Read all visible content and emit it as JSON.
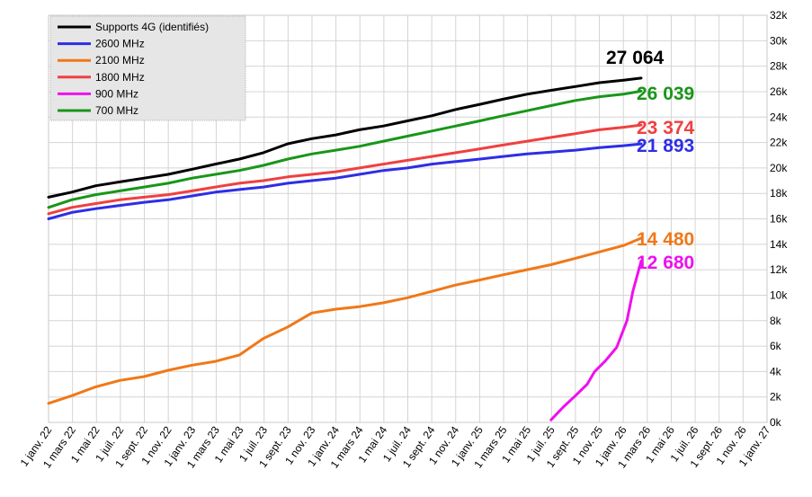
{
  "chart_data": {
    "type": "line",
    "title": "",
    "xlabel": "",
    "ylabel": "",
    "grid": true,
    "legend_position": "top-left",
    "ylim": [
      0,
      32000
    ],
    "y_ticks": [
      "0k",
      "2k",
      "4k",
      "6k",
      "8k",
      "10k",
      "12k",
      "14k",
      "16k",
      "18k",
      "20k",
      "22k",
      "24k",
      "26k",
      "28k",
      "30k",
      "32k"
    ],
    "x_ticks": [
      "1 janv. 22",
      "1 mars 22",
      "1 mai 22",
      "1 juil. 22",
      "1 sept. 22",
      "1 nov. 22",
      "1 janv. 23",
      "1 mars 23",
      "1 mai 23",
      "1 juil. 23",
      "1 sept. 23",
      "1 nov. 23",
      "1 janv. 24",
      "1 mars 24",
      "1 mai 24",
      "1 juil. 24",
      "1 sept. 24",
      "1 nov. 24",
      "1 janv. 25",
      "1 mars 25",
      "1 mai 25",
      "1 juil. 25",
      "1 sept. 25",
      "1 nov. 25",
      "1 janv. 26",
      "1 mars 26",
      "1 mai 26",
      "1 juil. 26",
      "1 sept. 26",
      "1 nov. 26",
      "1 janv. 27"
    ],
    "series": [
      {
        "name": "Supports 4G (identifiés)",
        "color": "#000000",
        "end_label": "27 064",
        "points": [
          [
            "2022-01-01",
            17700
          ],
          [
            "2022-03-01",
            18100
          ],
          [
            "2022-05-01",
            18600
          ],
          [
            "2022-07-01",
            18900
          ],
          [
            "2022-09-01",
            19200
          ],
          [
            "2022-11-01",
            19500
          ],
          [
            "2023-01-01",
            19900
          ],
          [
            "2023-03-01",
            20300
          ],
          [
            "2023-05-01",
            20700
          ],
          [
            "2023-07-01",
            21200
          ],
          [
            "2023-09-01",
            21900
          ],
          [
            "2023-11-01",
            22300
          ],
          [
            "2024-01-01",
            22600
          ],
          [
            "2024-03-01",
            23000
          ],
          [
            "2024-05-01",
            23300
          ],
          [
            "2024-07-01",
            23700
          ],
          [
            "2024-09-01",
            24100
          ],
          [
            "2024-11-01",
            24600
          ],
          [
            "2025-01-01",
            25000
          ],
          [
            "2025-03-01",
            25400
          ],
          [
            "2025-05-01",
            25800
          ],
          [
            "2025-07-01",
            26100
          ],
          [
            "2025-09-01",
            26400
          ],
          [
            "2025-11-01",
            26700
          ],
          [
            "2026-01-01",
            26900
          ],
          [
            "2026-02-15",
            27064
          ]
        ]
      },
      {
        "name": "2600 MHz",
        "color": "#2e2ee6",
        "end_label": "21 893",
        "points": [
          [
            "2022-01-01",
            16000
          ],
          [
            "2022-03-01",
            16500
          ],
          [
            "2022-05-01",
            16800
          ],
          [
            "2022-07-01",
            17050
          ],
          [
            "2022-09-01",
            17300
          ],
          [
            "2022-11-01",
            17500
          ],
          [
            "2023-01-01",
            17800
          ],
          [
            "2023-03-01",
            18100
          ],
          [
            "2023-05-01",
            18300
          ],
          [
            "2023-07-01",
            18500
          ],
          [
            "2023-09-01",
            18800
          ],
          [
            "2023-11-01",
            19000
          ],
          [
            "2024-01-01",
            19200
          ],
          [
            "2024-03-01",
            19500
          ],
          [
            "2024-05-01",
            19800
          ],
          [
            "2024-07-01",
            20000
          ],
          [
            "2024-09-01",
            20300
          ],
          [
            "2024-11-01",
            20500
          ],
          [
            "2025-01-01",
            20700
          ],
          [
            "2025-03-01",
            20900
          ],
          [
            "2025-05-01",
            21100
          ],
          [
            "2025-07-01",
            21250
          ],
          [
            "2025-09-01",
            21400
          ],
          [
            "2025-11-01",
            21600
          ],
          [
            "2026-01-01",
            21750
          ],
          [
            "2026-02-15",
            21893
          ]
        ]
      },
      {
        "name": "2100 MHz",
        "color": "#f07818",
        "end_label": "14 480",
        "points": [
          [
            "2022-01-01",
            1500
          ],
          [
            "2022-03-01",
            2100
          ],
          [
            "2022-05-01",
            2800
          ],
          [
            "2022-07-01",
            3300
          ],
          [
            "2022-09-01",
            3600
          ],
          [
            "2022-11-01",
            4100
          ],
          [
            "2023-01-01",
            4500
          ],
          [
            "2023-03-01",
            4800
          ],
          [
            "2023-05-01",
            5300
          ],
          [
            "2023-07-01",
            6600
          ],
          [
            "2023-09-01",
            7500
          ],
          [
            "2023-11-01",
            8600
          ],
          [
            "2024-01-01",
            8900
          ],
          [
            "2024-03-01",
            9100
          ],
          [
            "2024-05-01",
            9400
          ],
          [
            "2024-07-01",
            9800
          ],
          [
            "2024-09-01",
            10300
          ],
          [
            "2024-11-01",
            10800
          ],
          [
            "2025-01-01",
            11200
          ],
          [
            "2025-03-01",
            11600
          ],
          [
            "2025-05-01",
            12000
          ],
          [
            "2025-07-01",
            12400
          ],
          [
            "2025-09-01",
            12900
          ],
          [
            "2025-11-01",
            13400
          ],
          [
            "2026-01-01",
            13900
          ],
          [
            "2026-02-15",
            14480
          ]
        ]
      },
      {
        "name": "1800 MHz",
        "color": "#f04040",
        "end_label": "23 374",
        "points": [
          [
            "2022-01-01",
            16400
          ],
          [
            "2022-03-01",
            16900
          ],
          [
            "2022-05-01",
            17200
          ],
          [
            "2022-07-01",
            17500
          ],
          [
            "2022-09-01",
            17700
          ],
          [
            "2022-11-01",
            17900
          ],
          [
            "2023-01-01",
            18200
          ],
          [
            "2023-03-01",
            18500
          ],
          [
            "2023-05-01",
            18800
          ],
          [
            "2023-07-01",
            19000
          ],
          [
            "2023-09-01",
            19300
          ],
          [
            "2023-11-01",
            19500
          ],
          [
            "2024-01-01",
            19700
          ],
          [
            "2024-03-01",
            20000
          ],
          [
            "2024-05-01",
            20300
          ],
          [
            "2024-07-01",
            20600
          ],
          [
            "2024-09-01",
            20900
          ],
          [
            "2024-11-01",
            21200
          ],
          [
            "2025-01-01",
            21500
          ],
          [
            "2025-03-01",
            21800
          ],
          [
            "2025-05-01",
            22100
          ],
          [
            "2025-07-01",
            22400
          ],
          [
            "2025-09-01",
            22700
          ],
          [
            "2025-11-01",
            23000
          ],
          [
            "2026-01-01",
            23200
          ],
          [
            "2026-02-15",
            23374
          ]
        ]
      },
      {
        "name": "900 MHz",
        "color": "#ee10ee",
        "end_label": "12 680",
        "points": [
          [
            "2025-07-01",
            200
          ],
          [
            "2025-08-01",
            1200
          ],
          [
            "2025-09-01",
            2100
          ],
          [
            "2025-10-01",
            3000
          ],
          [
            "2025-10-20",
            4000
          ],
          [
            "2025-11-15",
            4800
          ],
          [
            "2025-12-15",
            5900
          ],
          [
            "2026-01-10",
            8000
          ],
          [
            "2026-01-25",
            10300
          ],
          [
            "2026-02-15",
            12680
          ]
        ]
      },
      {
        "name": "700 MHz",
        "color": "#199619",
        "end_label": "26 039",
        "points": [
          [
            "2022-01-01",
            16900
          ],
          [
            "2022-03-01",
            17500
          ],
          [
            "2022-05-01",
            17900
          ],
          [
            "2022-07-01",
            18200
          ],
          [
            "2022-09-01",
            18500
          ],
          [
            "2022-11-01",
            18800
          ],
          [
            "2023-01-01",
            19200
          ],
          [
            "2023-03-01",
            19500
          ],
          [
            "2023-05-01",
            19800
          ],
          [
            "2023-07-01",
            20200
          ],
          [
            "2023-09-01",
            20700
          ],
          [
            "2023-11-01",
            21100
          ],
          [
            "2024-01-01",
            21400
          ],
          [
            "2024-03-01",
            21700
          ],
          [
            "2024-05-01",
            22100
          ],
          [
            "2024-07-01",
            22500
          ],
          [
            "2024-09-01",
            22900
          ],
          [
            "2024-11-01",
            23300
          ],
          [
            "2025-01-01",
            23700
          ],
          [
            "2025-03-01",
            24100
          ],
          [
            "2025-05-01",
            24500
          ],
          [
            "2025-07-01",
            24900
          ],
          [
            "2025-09-01",
            25300
          ],
          [
            "2025-11-01",
            25600
          ],
          [
            "2026-01-01",
            25800
          ],
          [
            "2026-02-15",
            26039
          ]
        ]
      }
    ]
  }
}
